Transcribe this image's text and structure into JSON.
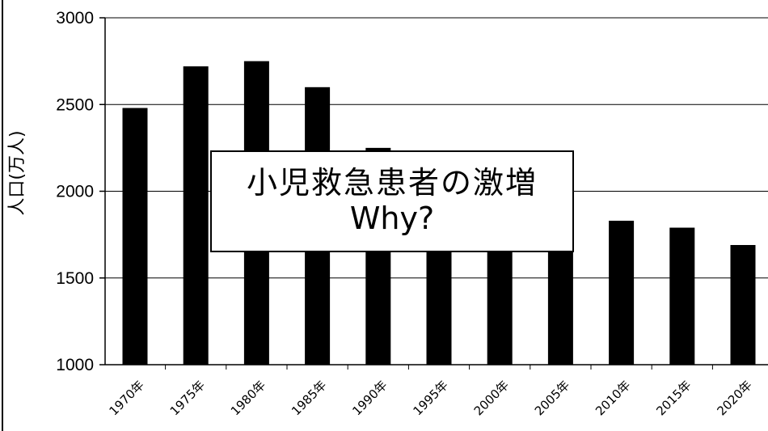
{
  "chart_data": {
    "type": "bar",
    "categories": [
      "1970年",
      "1975年",
      "1980年",
      "1985年",
      "1990年",
      "1995年",
      "2000年",
      "2005年",
      "2010年",
      "2015年",
      "2020年"
    ],
    "values": [
      2480,
      2720,
      2750,
      2600,
      2250,
      2000,
      1850,
      1760,
      1830,
      1790,
      1690
    ],
    "ylabel": "人口(万人)",
    "ylim": [
      1000,
      3000
    ],
    "yticks": [
      1000,
      1500,
      2000,
      2500,
      3000
    ],
    "grid": true,
    "bar_color": "#000000"
  },
  "overlay": {
    "line1": "小児救急患者の激増",
    "line2": "Why?"
  }
}
